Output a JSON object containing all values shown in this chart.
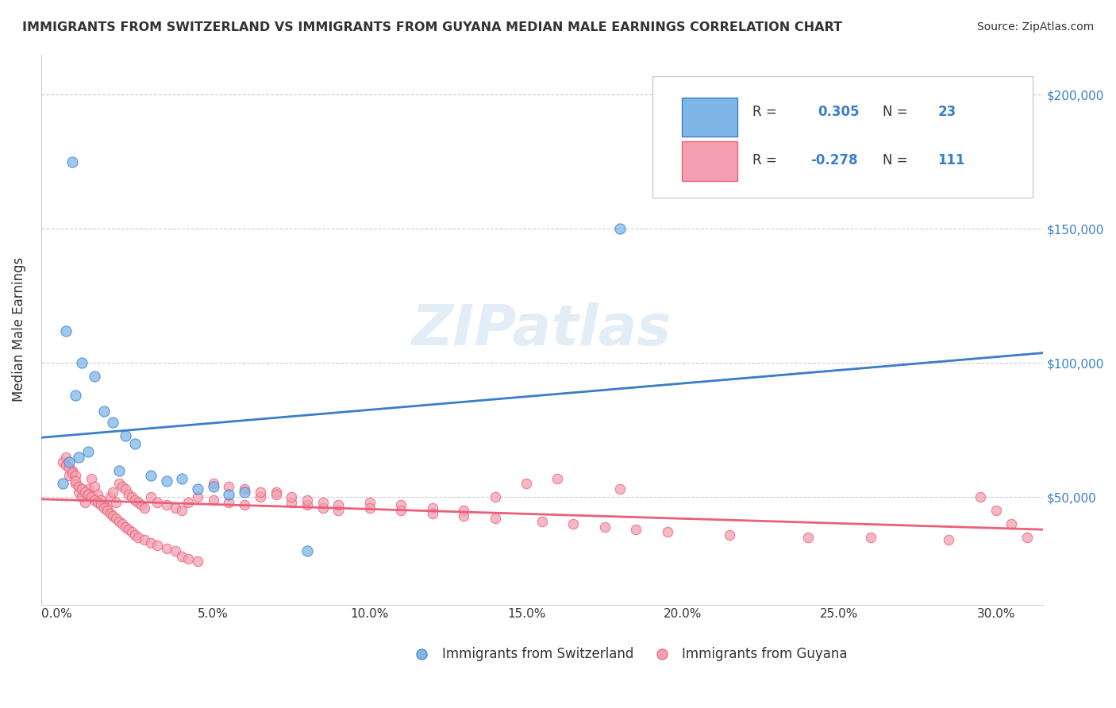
{
  "title": "IMMIGRANTS FROM SWITZERLAND VS IMMIGRANTS FROM GUYANA MEDIAN MALE EARNINGS CORRELATION CHART",
  "source": "Source: ZipAtlas.com",
  "xlabel_ticks": [
    "0.0%",
    "5.0%",
    "10.0%",
    "15.0%",
    "20.0%",
    "25.0%",
    "30.0%"
  ],
  "xlabel_values": [
    0.0,
    0.05,
    0.1,
    0.15,
    0.2,
    0.25,
    0.3
  ],
  "ylabel": "Median Male Earnings",
  "ylabel_ticks": [
    "$50,000",
    "$100,000",
    "$150,000",
    "$200,000"
  ],
  "ylabel_values": [
    50000,
    100000,
    150000,
    200000
  ],
  "ylim": [
    10000,
    215000
  ],
  "xlim": [
    -0.005,
    0.315
  ],
  "legend_r1": "R =  0.305",
  "legend_n1": "N = 23",
  "legend_r2": "R = -0.278",
  "legend_n2": "N = 111",
  "color_swiss": "#7EB6E8",
  "color_guyana": "#F4A0B0",
  "line_color_swiss": "#3B7EC8",
  "line_color_guyana": "#E8607A",
  "watermark": "ZIPatlas",
  "scatter_swiss_x": [
    0.005,
    0.003,
    0.008,
    0.012,
    0.006,
    0.015,
    0.018,
    0.022,
    0.025,
    0.01,
    0.007,
    0.004,
    0.02,
    0.03,
    0.04,
    0.035,
    0.002,
    0.05,
    0.045,
    0.06,
    0.055,
    0.18,
    0.08
  ],
  "scatter_swiss_y": [
    175000,
    112000,
    100000,
    95000,
    88000,
    82000,
    78000,
    73000,
    70000,
    67000,
    65000,
    63000,
    60000,
    58000,
    57000,
    56000,
    55000,
    54000,
    53000,
    52000,
    51000,
    150000,
    30000
  ],
  "scatter_guyana_x": [
    0.002,
    0.004,
    0.005,
    0.006,
    0.007,
    0.008,
    0.009,
    0.01,
    0.011,
    0.012,
    0.013,
    0.014,
    0.015,
    0.016,
    0.017,
    0.018,
    0.019,
    0.02,
    0.021,
    0.022,
    0.023,
    0.024,
    0.025,
    0.026,
    0.027,
    0.028,
    0.03,
    0.032,
    0.035,
    0.038,
    0.04,
    0.042,
    0.045,
    0.05,
    0.055,
    0.06,
    0.065,
    0.07,
    0.075,
    0.08,
    0.085,
    0.09,
    0.1,
    0.11,
    0.12,
    0.13,
    0.14,
    0.15,
    0.16,
    0.18,
    0.003,
    0.003,
    0.004,
    0.005,
    0.006,
    0.006,
    0.007,
    0.008,
    0.009,
    0.01,
    0.011,
    0.012,
    0.013,
    0.014,
    0.015,
    0.016,
    0.017,
    0.018,
    0.019,
    0.02,
    0.021,
    0.022,
    0.023,
    0.024,
    0.025,
    0.026,
    0.028,
    0.03,
    0.032,
    0.035,
    0.038,
    0.04,
    0.042,
    0.045,
    0.05,
    0.055,
    0.06,
    0.065,
    0.07,
    0.075,
    0.08,
    0.085,
    0.09,
    0.1,
    0.11,
    0.12,
    0.13,
    0.14,
    0.155,
    0.165,
    0.175,
    0.185,
    0.195,
    0.215,
    0.24,
    0.26,
    0.285,
    0.295,
    0.3,
    0.305,
    0.31
  ],
  "scatter_guyana_y": [
    63000,
    58000,
    60000,
    55000,
    52000,
    50000,
    48000,
    53000,
    57000,
    54000,
    51000,
    49000,
    47000,
    46000,
    50000,
    52000,
    48000,
    55000,
    54000,
    53000,
    51000,
    50000,
    49000,
    48000,
    47000,
    46000,
    50000,
    48000,
    47000,
    46000,
    45000,
    48000,
    50000,
    49000,
    48000,
    47000,
    50000,
    52000,
    48000,
    47000,
    46000,
    45000,
    48000,
    47000,
    46000,
    45000,
    50000,
    55000,
    57000,
    53000,
    65000,
    62000,
    61000,
    59000,
    58000,
    56000,
    54000,
    53000,
    52000,
    51000,
    50000,
    49000,
    48000,
    47000,
    46000,
    45000,
    44000,
    43000,
    42000,
    41000,
    40000,
    39000,
    38000,
    37000,
    36000,
    35000,
    34000,
    33000,
    32000,
    31000,
    30000,
    28000,
    27000,
    26000,
    55000,
    54000,
    53000,
    52000,
    51000,
    50000,
    49000,
    48000,
    47000,
    46000,
    45000,
    44000,
    43000,
    42000,
    41000,
    40000,
    39000,
    38000,
    37000,
    36000,
    35000,
    35000,
    34000,
    50000,
    45000,
    40000,
    35000
  ]
}
